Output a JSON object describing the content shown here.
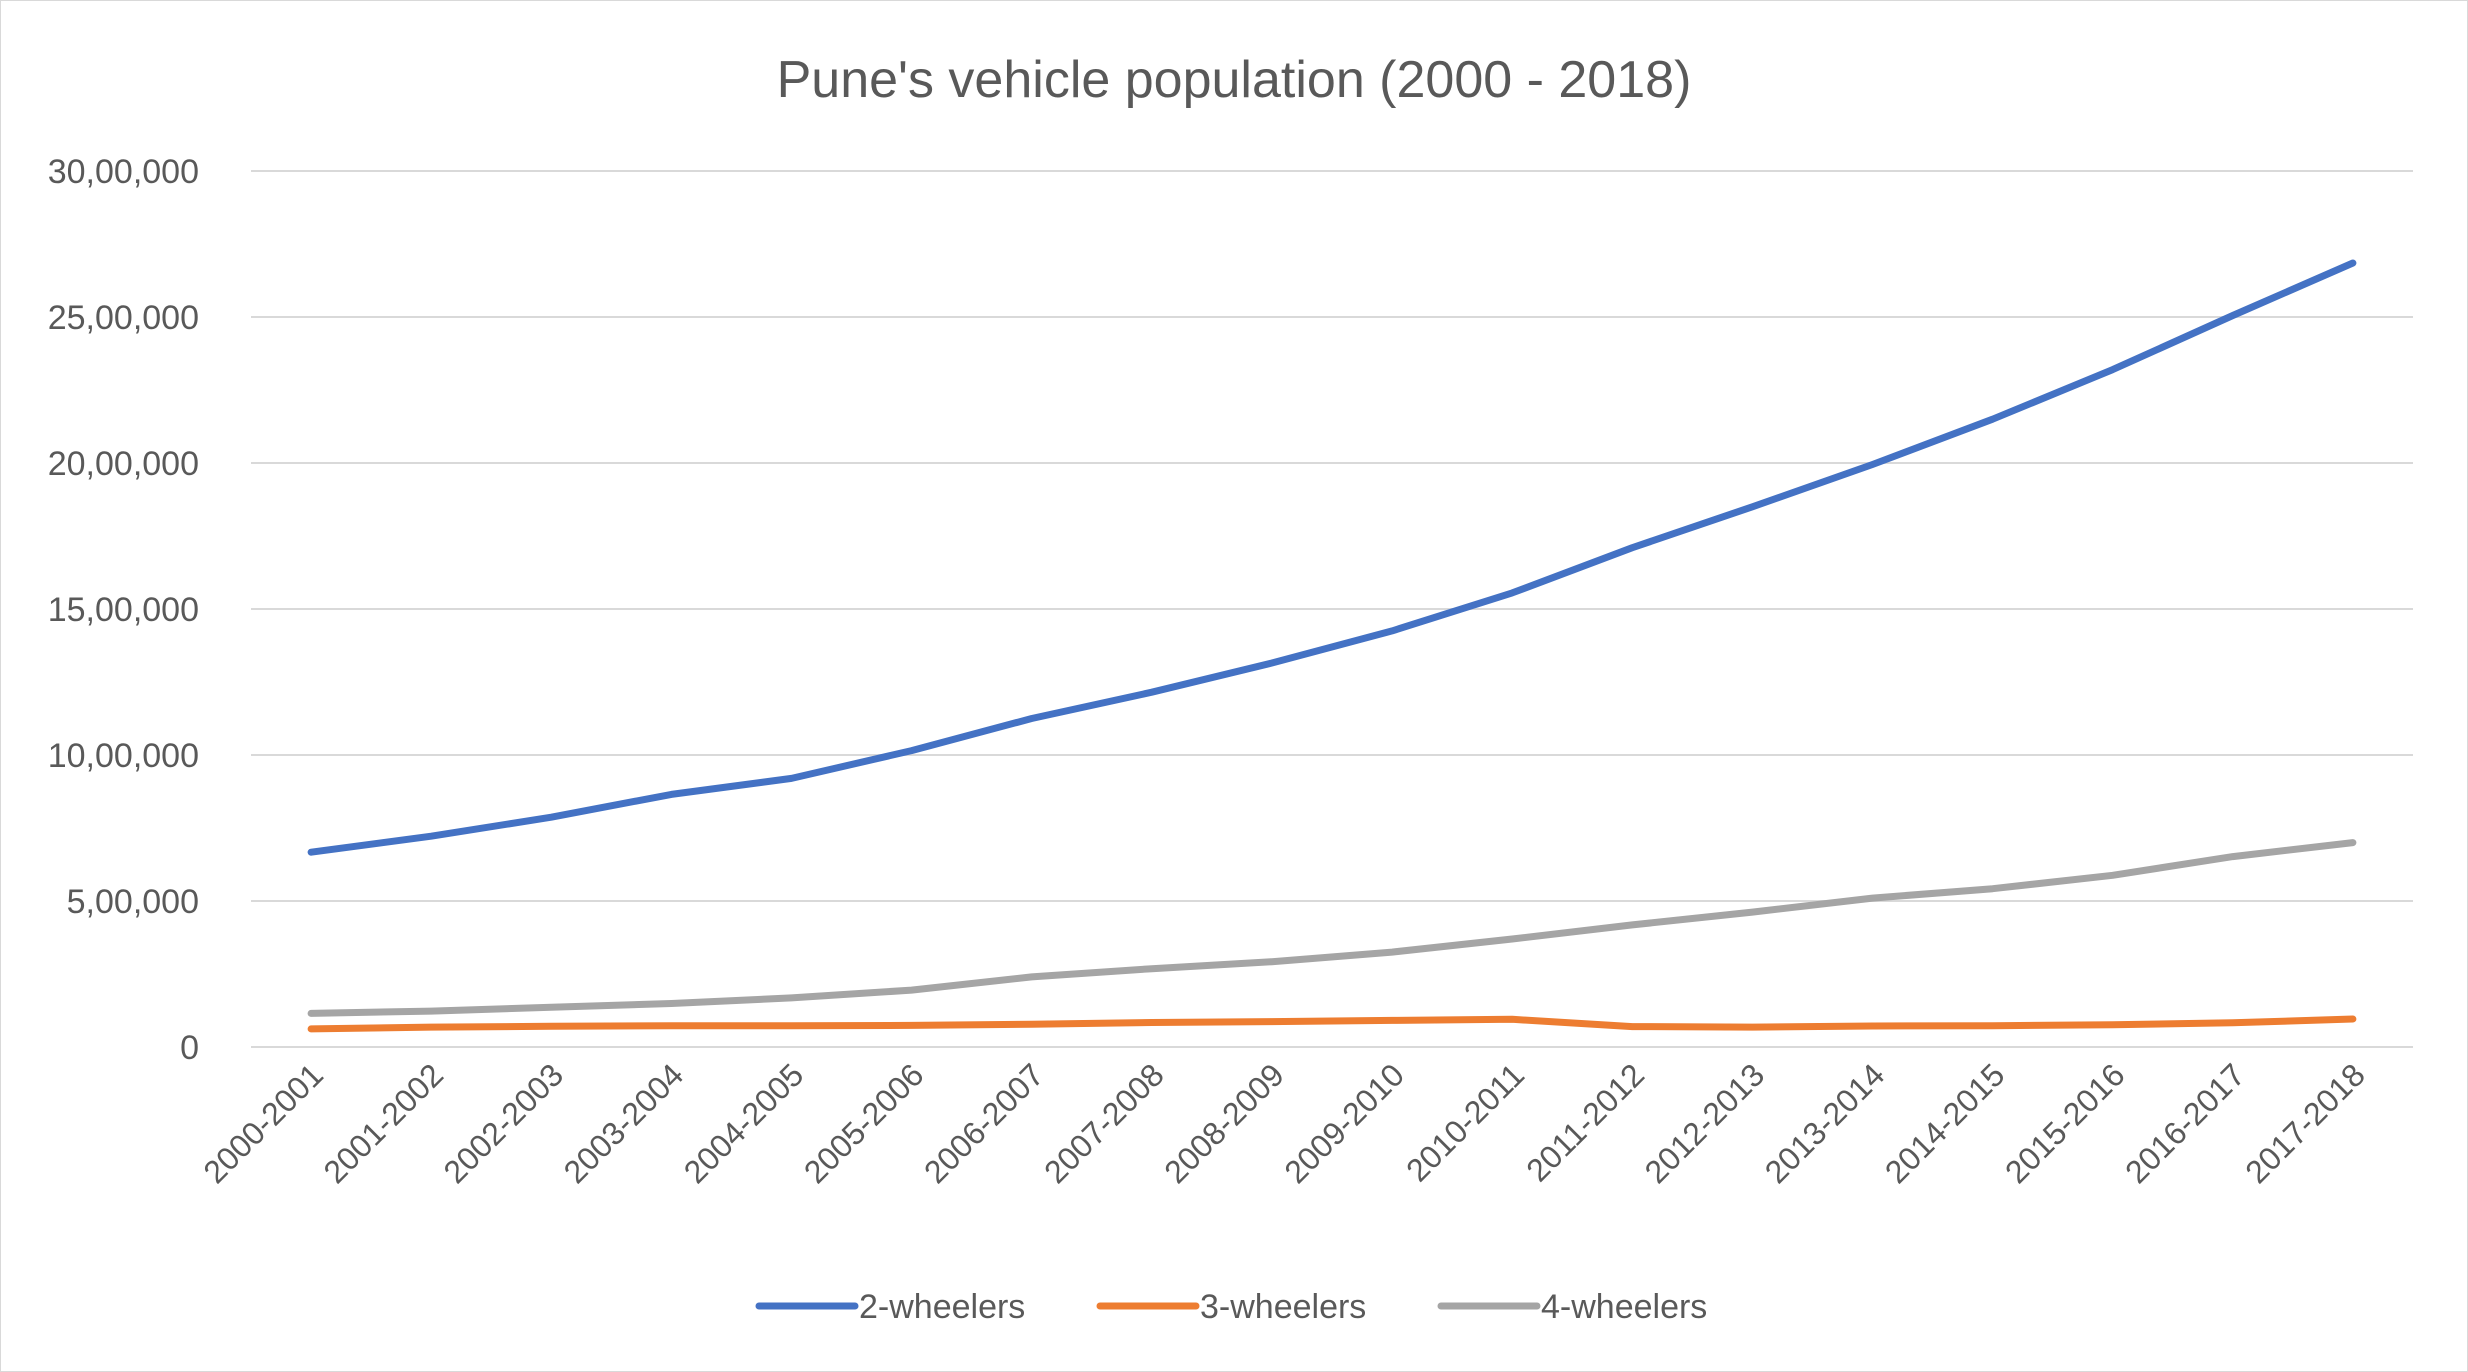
{
  "chart_data": {
    "type": "line",
    "title": "Pune's vehicle population (2000 - 2018)",
    "xlabel": "",
    "ylabel": "",
    "ylim": [
      0,
      3000000
    ],
    "yticks": [
      {
        "value": 0,
        "label": "0"
      },
      {
        "value": 500000,
        "label": "5,00,000"
      },
      {
        "value": 1000000,
        "label": "10,00,000"
      },
      {
        "value": 1500000,
        "label": "15,00,000"
      },
      {
        "value": 2000000,
        "label": "20,00,000"
      },
      {
        "value": 2500000,
        "label": "25,00,000"
      },
      {
        "value": 3000000,
        "label": "30,00,000"
      }
    ],
    "grid": true,
    "legend_position": "bottom",
    "categories": [
      "2000-2001",
      "2001-2002",
      "2002-2003",
      "2003-2004",
      "2004-2005",
      "2005-2006",
      "2006-2007",
      "2007-2008",
      "2008-2009",
      "2009-2010",
      "2010-2011",
      "2011-2012",
      "2012-2013",
      "2013-2014",
      "2014-2015",
      "2015-2016",
      "2016-2017",
      "2017-2018"
    ],
    "series": [
      {
        "name": "2-wheelers",
        "color": "#4472c4",
        "values": [
          667000,
          722000,
          787000,
          865000,
          920000,
          1015000,
          1125000,
          1215000,
          1315000,
          1425000,
          1555000,
          1710000,
          1850000,
          1995000,
          2150000,
          2320000,
          2505000,
          2685000
        ]
      },
      {
        "name": "3-wheelers",
        "color": "#ed7d31",
        "values": [
          62000,
          68000,
          71000,
          73000,
          73000,
          74000,
          78000,
          84000,
          87000,
          91000,
          95000,
          70000,
          68000,
          72000,
          73000,
          76000,
          83000,
          96000
        ]
      },
      {
        "name": "4-wheelers",
        "color": "#a5a5a5",
        "values": [
          115000,
          123000,
          136000,
          149000,
          168000,
          195000,
          240000,
          268000,
          292000,
          325000,
          370000,
          418000,
          462000,
          510000,
          542000,
          588000,
          652000,
          700000
        ]
      }
    ]
  }
}
